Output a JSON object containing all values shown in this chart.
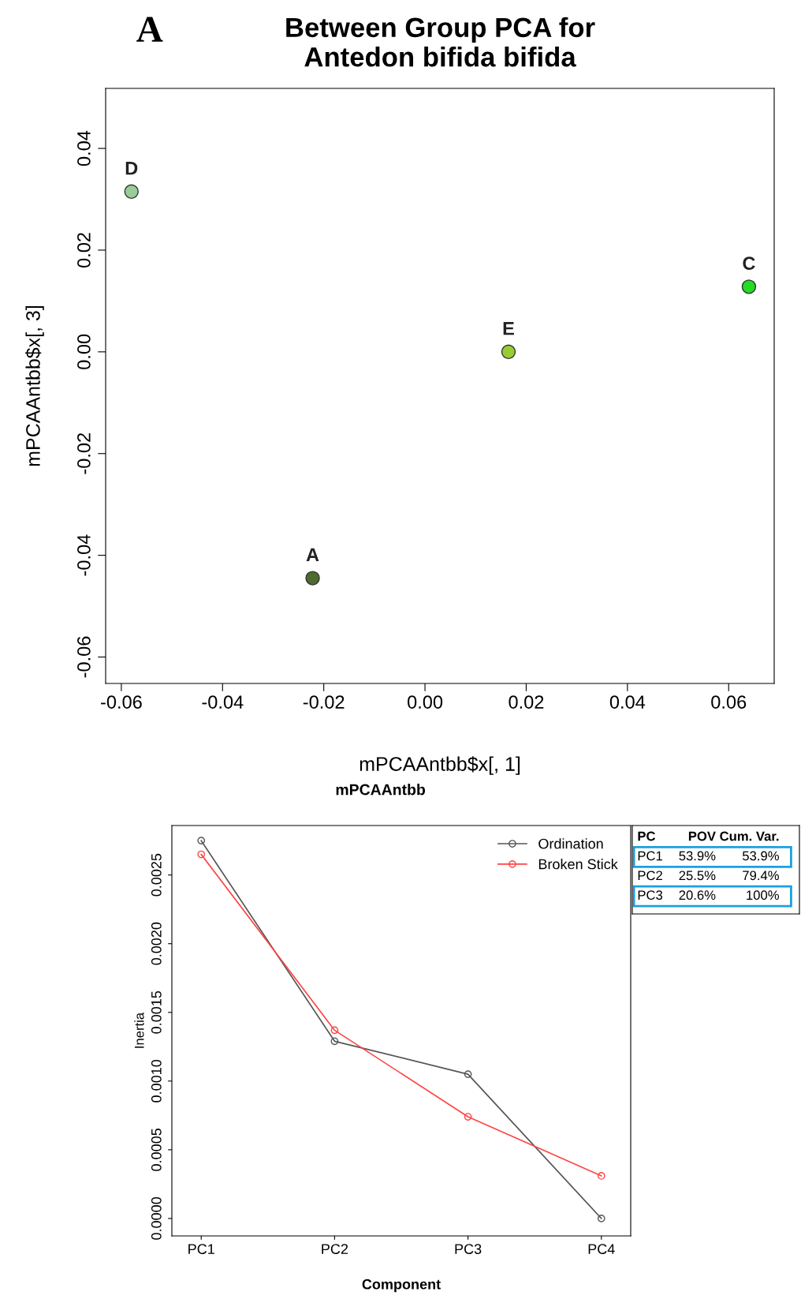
{
  "chart_data": [
    {
      "type": "scatter",
      "title": "Between Group PCA for\nAntedon bifida bifida",
      "xlabel": "mPCAAntbb$x[, 1]",
      "ylabel": "mPCAAntbb$x[, 3]",
      "annotations": [
        "A",
        "mPCAAntbb"
      ],
      "series": [
        {
          "name": "D",
          "color": "#99cc99",
          "x": [
            -0.058
          ],
          "values": [
            0.0315
          ]
        },
        {
          "name": "A",
          "color": "#4d6b2e",
          "x": [
            -0.0222
          ],
          "values": [
            -0.0445
          ]
        },
        {
          "name": "E",
          "color": "#99cc33",
          "x": [
            0.0165
          ],
          "values": [
            0.0
          ]
        },
        {
          "name": "C",
          "color": "#22dd22",
          "x": [
            0.064
          ],
          "values": [
            0.0128
          ]
        }
      ],
      "xlim": [
        -0.0631,
        0.069
      ],
      "xticks": [
        {
          "value": -0.06,
          "label": "-0.06"
        },
        {
          "value": -0.04,
          "label": "-0.04"
        },
        {
          "value": -0.02,
          "label": "-0.02"
        },
        {
          "value": 0.0,
          "label": "0.00"
        },
        {
          "value": 0.02,
          "label": "0.02"
        },
        {
          "value": 0.04,
          "label": "0.04"
        },
        {
          "value": 0.06,
          "label": "0.06"
        }
      ],
      "ylim": [
        -0.0652,
        0.0518
      ],
      "yticks": [
        {
          "value": -0.06,
          "label": "-0.06"
        },
        {
          "value": -0.04,
          "label": "-0.04"
        },
        {
          "value": -0.02,
          "label": "-0.02"
        },
        {
          "value": 0.0,
          "label": "0.00"
        },
        {
          "value": 0.02,
          "label": "0.02"
        },
        {
          "value": 0.04,
          "label": "0.04"
        }
      ],
      "marker": "circle",
      "grid": false
    },
    {
      "type": "line",
      "xlabel": "Component",
      "ylabel": "Inertia",
      "categories": [
        "PC1",
        "PC2",
        "PC3",
        "PC4"
      ],
      "series": [
        {
          "name": "Ordination",
          "color": "#555555",
          "values": [
            0.00275,
            0.00129,
            0.00105,
            0.0
          ]
        },
        {
          "name": "Broken Stick",
          "color": "#ff4444",
          "values": [
            0.00265,
            0.00137,
            0.00074,
            0.00031
          ]
        }
      ],
      "ylim": [
        -0.000127,
        0.00286
      ],
      "yticks": [
        {
          "value": 0.0,
          "label": "0.0000"
        },
        {
          "value": 0.0005,
          "label": "0.0005"
        },
        {
          "value": 0.001,
          "label": "0.0010"
        },
        {
          "value": 0.0015,
          "label": "0.0015"
        },
        {
          "value": 0.002,
          "label": "0.0020"
        },
        {
          "value": 0.0025,
          "label": "0.0025"
        }
      ],
      "annotations": [
        "PC",
        "POV",
        "Cum. Var.",
        "PC1",
        "53.9%",
        "53.9%",
        "PC2",
        "25.5%",
        "79.4%",
        "PC3",
        "20.6%",
        "100%"
      ],
      "marker": "circle",
      "line_style": "solid",
      "grid": false,
      "legend": "top right"
    }
  ]
}
